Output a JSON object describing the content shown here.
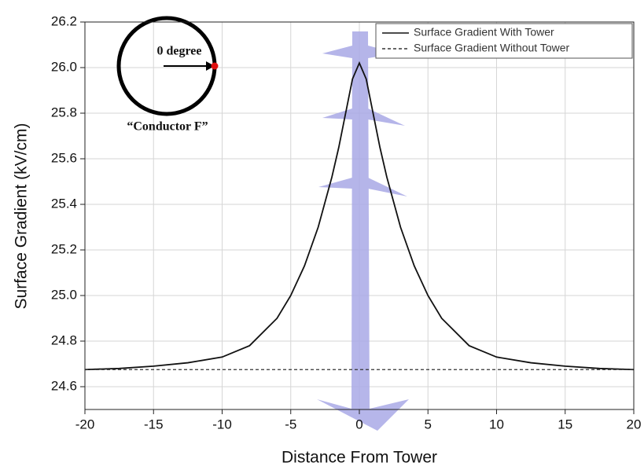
{
  "chart_data": {
    "type": "line",
    "x_label": "Distance From Tower",
    "y_label": "Surface Gradient (kV/cm)",
    "annotations": [
      "0 degree",
      "“Conductor F”"
    ],
    "x": [
      -20,
      -17.5,
      -15,
      -12.5,
      -10,
      -8,
      -6,
      -5,
      -4,
      -3,
      -2,
      -1.5,
      -1,
      -0.5,
      0,
      0.5,
      1,
      1.5,
      2,
      3,
      4,
      5,
      6,
      8,
      10,
      12.5,
      15,
      17.5,
      20
    ],
    "series": [
      {
        "name": "Surface Gradient With Tower",
        "color": "#111111",
        "dash": "solid",
        "values": [
          24.675,
          24.68,
          24.69,
          24.705,
          24.73,
          24.78,
          24.9,
          25.0,
          25.13,
          25.3,
          25.52,
          25.65,
          25.8,
          25.95,
          26.02,
          25.95,
          25.8,
          25.65,
          25.52,
          25.3,
          25.13,
          25.0,
          24.9,
          24.78,
          24.73,
          24.705,
          24.69,
          24.68,
          24.675
        ]
      },
      {
        "name": "Surface Gradient Without Tower",
        "color": "#333333",
        "dash": "dashed",
        "values": [
          24.675,
          24.675,
          24.675,
          24.675,
          24.675,
          24.675,
          24.675,
          24.675,
          24.675,
          24.675,
          24.675,
          24.675,
          24.675,
          24.675,
          24.675,
          24.675,
          24.675,
          24.675,
          24.675,
          24.675,
          24.675,
          24.675,
          24.675,
          24.675,
          24.675,
          24.675,
          24.675,
          24.675,
          24.675
        ]
      }
    ],
    "xlim": [
      -20,
      20
    ],
    "ylim": [
      24.5,
      26.2
    ],
    "xticks": [
      -20,
      -15,
      -10,
      -5,
      0,
      5,
      10,
      15,
      20
    ],
    "yticks": [
      24.6,
      24.8,
      {
        "value": 25,
        "label": "25.0"
      },
      25.2,
      25.4,
      25.6,
      25.8,
      {
        "value": 26,
        "label": "26.0"
      },
      26.2
    ],
    "grid": true,
    "legend": "upper right"
  }
}
